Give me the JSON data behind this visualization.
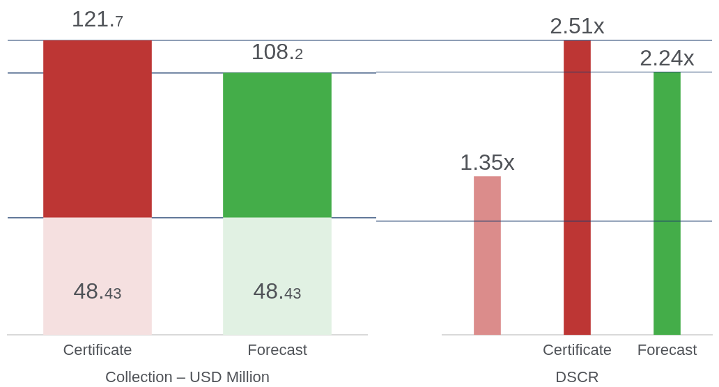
{
  "chart_data": [
    {
      "type": "bar",
      "xlabel": "Collection – USD Million",
      "categories": [
        "Certificate",
        "Forecast"
      ],
      "stacked": true,
      "totals": [
        "121.7",
        "108.2"
      ],
      "ref_lines": [
        {
          "axis": "y",
          "value": 121.7,
          "color": "#1f3f6e"
        },
        {
          "axis": "y",
          "value": 108.2,
          "color": "#1f3f6e"
        },
        {
          "axis": "y",
          "value": 48.43,
          "color": "#1f3f6e"
        }
      ],
      "series": [
        {
          "colors": [
            "#f5e0e0",
            "#e1f1e3"
          ],
          "values": [
            48.43,
            48.43
          ],
          "value_labels": [
            "48.43",
            "48.43"
          ]
        },
        {
          "colors": [
            "#bd3634",
            "#44ad49"
          ],
          "values": [
            73.27,
            59.77
          ]
        }
      ]
    },
    {
      "type": "bar",
      "xlabel": "DSCR",
      "categories": [
        null,
        "Certificate",
        "Forecast"
      ],
      "ref_lines": [
        {
          "axis": "y",
          "value": 2.51,
          "color": "#1f3f6e"
        },
        {
          "axis": "y",
          "value": 2.24,
          "color": "#1f3f6e"
        },
        {
          "axis": "y",
          "value": 0.97,
          "color": "#1f3f6e"
        }
      ],
      "series": [
        {
          "colors": [
            "#db8c8b",
            "#bd3634",
            "#44ad49"
          ],
          "values": [
            1.35,
            2.51,
            2.24
          ],
          "value_labels": [
            "1.35x",
            "2.51x",
            "2.24x"
          ]
        }
      ]
    }
  ]
}
